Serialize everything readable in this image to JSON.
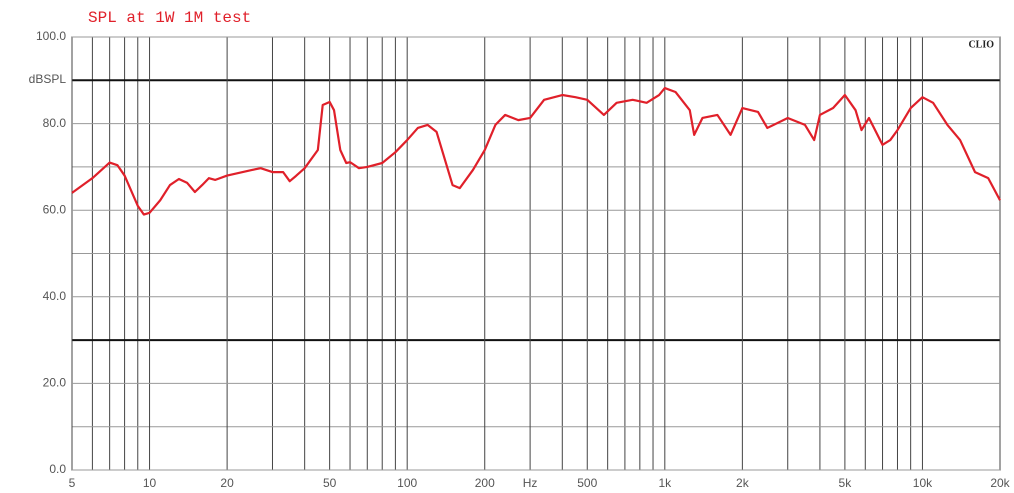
{
  "chart_data": {
    "type": "line",
    "title": "SPL at 1W 1M test",
    "y_label": "dBSPL",
    "brand": "CLIO",
    "x": [
      5,
      6,
      7,
      7.5,
      8,
      9,
      9.5,
      10,
      11,
      12,
      13,
      14,
      15,
      16,
      17,
      18,
      20,
      25,
      27,
      30,
      33,
      35,
      37,
      40,
      45,
      47,
      50,
      52,
      55,
      58,
      60,
      65,
      70,
      80,
      90,
      100,
      110,
      120,
      130,
      150,
      160,
      180,
      200,
      220,
      240,
      270,
      300,
      340,
      400,
      450,
      500,
      580,
      650,
      750,
      850,
      950,
      1000,
      1100,
      1250,
      1300,
      1400,
      1600,
      1800,
      2000,
      2300,
      2500,
      3000,
      3500,
      3800,
      4000,
      4500,
      5000,
      5500,
      5800,
      6200,
      7000,
      7500,
      8000,
      9000,
      10000,
      11000,
      12500,
      14000,
      16000,
      18000,
      20000
    ],
    "values": [
      64,
      67.4,
      71,
      70.4,
      68,
      61,
      59,
      59.4,
      62.3,
      65.8,
      67.2,
      66.3,
      64.2,
      65.8,
      67.4,
      67,
      68,
      69.3,
      69.7,
      68.8,
      68.8,
      66.7,
      67.9,
      69.7,
      73.9,
      84.3,
      85,
      83.1,
      73.9,
      70.9,
      71.1,
      69.7,
      70,
      70.9,
      73.4,
      76.2,
      79,
      79.7,
      78.1,
      65.8,
      65.1,
      69.3,
      73.9,
      79.7,
      82,
      80.8,
      81.3,
      85.5,
      86.6,
      86.1,
      85.5,
      82,
      84.8,
      85.5,
      84.8,
      86.6,
      88.2,
      87.3,
      83.1,
      77.4,
      81.3,
      82,
      77.4,
      83.6,
      82.7,
      79,
      81.3,
      79.7,
      76.2,
      82,
      83.6,
      86.6,
      83.1,
      78.5,
      81.3,
      75.1,
      76.2,
      78.5,
      83.6,
      86.1,
      84.8,
      79.7,
      76.2,
      68.8,
      67.4,
      62.3
    ],
    "color": "#e0202a",
    "xscale": "log",
    "xlim": [
      5,
      20000
    ],
    "xticks": [
      5,
      10,
      20,
      50,
      100,
      200,
      {
        "value": 300,
        "label": "Hz"
      },
      500,
      {
        "value": 1000,
        "label": "1k"
      },
      {
        "value": 2000,
        "label": "2k"
      },
      {
        "value": 5000,
        "label": "5k"
      },
      {
        "value": 10000,
        "label": "10k"
      },
      {
        "value": 20000,
        "label": "20k"
      }
    ],
    "x_minor_ticks": [
      6,
      7,
      8,
      9,
      30,
      40,
      60,
      70,
      80,
      90,
      400,
      600,
      700,
      800,
      900,
      3000,
      4000,
      6000,
      7000,
      8000,
      9000
    ],
    "ylim": [
      0,
      100
    ],
    "yticks": [
      {
        "value": 0,
        "label": "0.0"
      },
      {
        "value": 20,
        "label": "20.0"
      },
      {
        "value": 40,
        "label": "40.0"
      },
      {
        "value": 60,
        "label": "60.0"
      },
      {
        "value": 80,
        "label": "80.0"
      },
      {
        "value": 100,
        "label": "100.0"
      }
    ],
    "y_minor_ticks": [
      10,
      30,
      50,
      70,
      90
    ],
    "emphasized_y": [
      30,
      90
    ],
    "grid": true
  }
}
